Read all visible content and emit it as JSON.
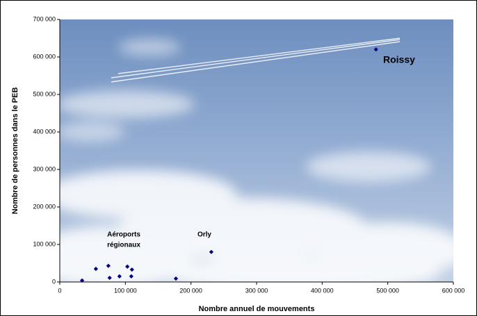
{
  "chart_data": {
    "type": "scatter",
    "x_label": "Nombre annuel de mouvements",
    "y_label": "Nombre de personnes dans le PEB",
    "annotations": [
      "Roissy",
      "Orly",
      "Aéroports",
      "régionaux"
    ],
    "color": "#000080",
    "x": [
      482000,
      231000,
      177000,
      34000,
      55000,
      74000,
      76000,
      91000,
      103000,
      110000,
      109000
    ],
    "values": [
      620000,
      80000,
      9000,
      4000,
      35000,
      43000,
      11000,
      15000,
      41000,
      33000,
      15000
    ],
    "xlim": [
      0,
      600000
    ],
    "xticks": [
      0,
      {
        "value": 100000,
        "label": "100 000"
      },
      {
        "value": 200000,
        "label": "200 000"
      },
      {
        "value": 300000,
        "label": "300 000"
      },
      {
        "value": 400000,
        "label": "400 000"
      },
      {
        "value": 500000,
        "label": "500 000"
      },
      {
        "value": 600000,
        "label": "600 000"
      }
    ],
    "ylim": [
      0,
      700000
    ],
    "yticks": [
      0,
      {
        "value": 100000,
        "label": "100 000"
      },
      {
        "value": 200000,
        "label": "200 000"
      },
      {
        "value": 300000,
        "label": "300 000"
      },
      {
        "value": 400000,
        "label": "400 000"
      },
      {
        "value": 500000,
        "label": "500 000"
      },
      {
        "value": 600000,
        "label": "600 000"
      },
      {
        "value": 700000,
        "label": "700 000"
      }
    ]
  }
}
